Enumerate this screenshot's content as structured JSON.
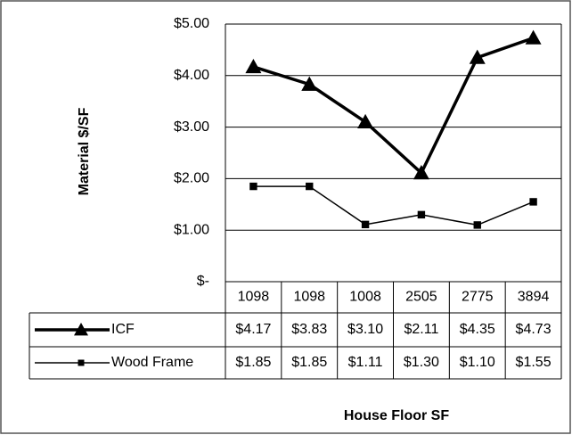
{
  "chart_data": {
    "type": "line",
    "x_label": "House Floor SF",
    "y_label": "Material $/SF",
    "categories": [
      "1098",
      "1098",
      "1008",
      "2505",
      "2775",
      "3894"
    ],
    "series": [
      {
        "name": "ICF",
        "color": "#000000",
        "marker": "triangle",
        "values": [
          4.17,
          3.83,
          3.1,
          2.11,
          4.35,
          4.73
        ],
        "value_labels": [
          "$4.17",
          "$3.83",
          "$3.10",
          "$2.11",
          "$4.35",
          "$4.73"
        ]
      },
      {
        "name": "Wood Frame",
        "color": "#000000",
        "marker": "square",
        "values": [
          1.85,
          1.85,
          1.11,
          1.3,
          1.1,
          1.55
        ],
        "value_labels": [
          "$1.85",
          "$1.85",
          "$1.11",
          "$1.30",
          "$1.10",
          "$1.55"
        ]
      }
    ],
    "ylim": [
      0,
      5
    ],
    "yticks": [
      {
        "value": 0,
        "label": "$-"
      },
      {
        "value": 1,
        "label": "$1.00"
      },
      {
        "value": 2,
        "label": "$2.00"
      },
      {
        "value": 3,
        "label": "$3.00"
      },
      {
        "value": 4,
        "label": "$4.00"
      },
      {
        "value": 5,
        "label": "$5.00"
      }
    ],
    "grid": true
  }
}
